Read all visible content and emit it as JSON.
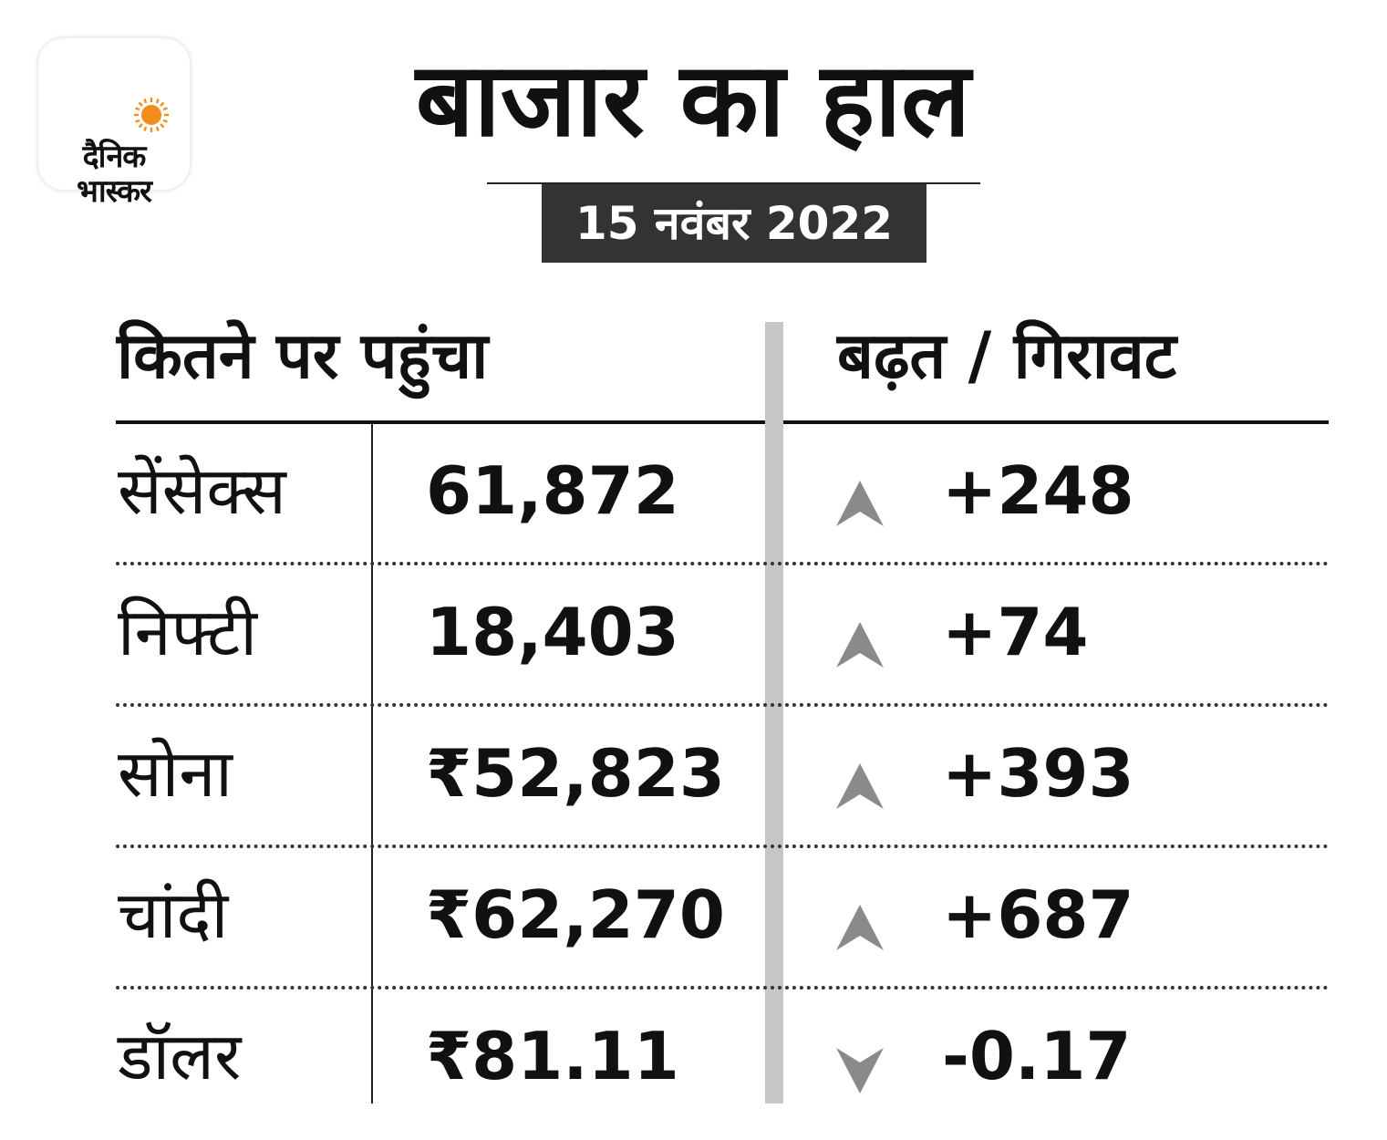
{
  "brand": {
    "line1": "दैनिक",
    "line2": "भास्कर",
    "sun_color": "#f28c1a"
  },
  "title": "बाजार का हाल",
  "date": "15 नवंबर 2022",
  "table": {
    "header_left": "कितने पर पहुंचा",
    "header_right": "बढ़त / गिरावट",
    "rows": [
      {
        "name": "सेंसेक्स",
        "value": "61,872",
        "direction": "up",
        "change": "+248"
      },
      {
        "name": "निफ्टी",
        "value": "18,403",
        "direction": "up",
        "change": "+74"
      },
      {
        "name": "सोना",
        "value": "₹52,823",
        "direction": "up",
        "change": "+393"
      },
      {
        "name": "चांदी",
        "value": "₹62,270",
        "direction": "up",
        "change": "+687"
      },
      {
        "name": "डॉलर",
        "value": "₹81.11",
        "direction": "down",
        "change": "-0.17"
      }
    ]
  },
  "colors": {
    "arrow": "#8a8a8a",
    "date_box": "#333333",
    "divider": "#c6c6c6"
  }
}
